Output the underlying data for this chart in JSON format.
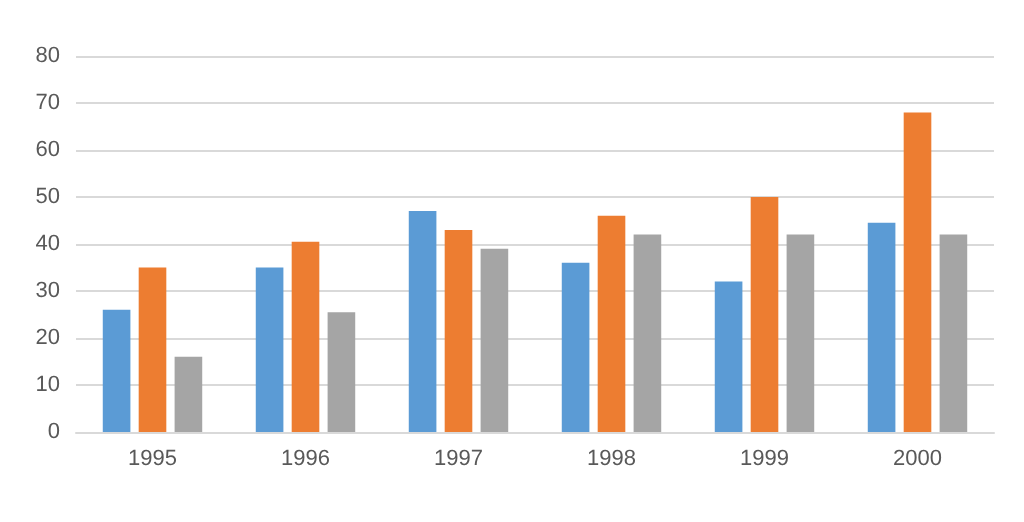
{
  "chart_data": {
    "type": "bar",
    "categories": [
      "1995",
      "1996",
      "1997",
      "1998",
      "1999",
      "2000"
    ],
    "series": [
      {
        "color": "#5b9bd5",
        "values": [
          26,
          35,
          47,
          36,
          32,
          44.5
        ]
      },
      {
        "color": "#ed7d31",
        "values": [
          35,
          40.5,
          43,
          46,
          50,
          68
        ]
      },
      {
        "color": "#a5a5a5",
        "values": [
          16,
          25.5,
          39,
          42,
          42,
          42
        ]
      }
    ],
    "ylim": [
      0,
      80
    ],
    "yticks": [
      0,
      10,
      20,
      30,
      40,
      50,
      60,
      70,
      80
    ],
    "grid": "y"
  }
}
